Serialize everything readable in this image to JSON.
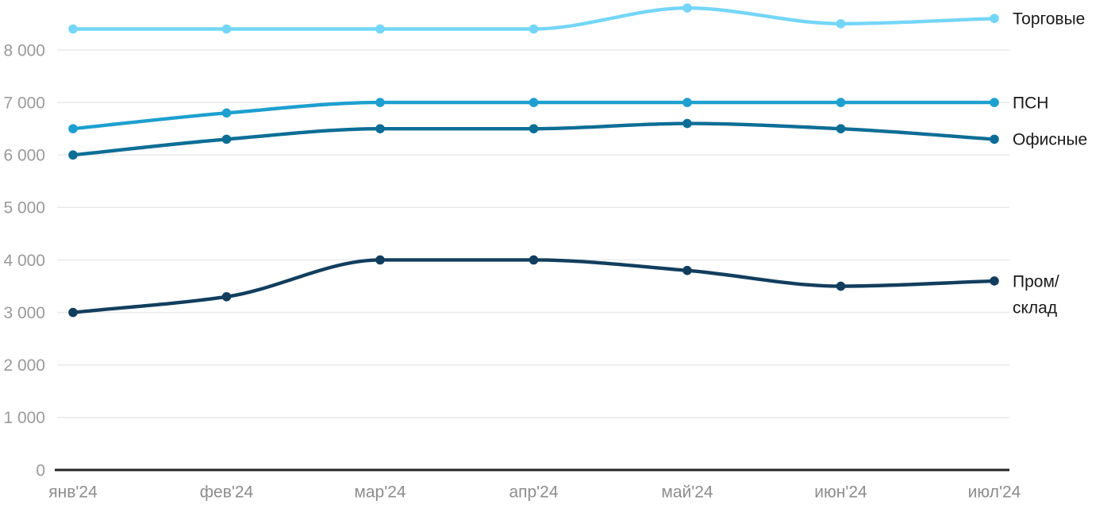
{
  "chart_data": {
    "type": "line",
    "title": "",
    "xlabel": "",
    "ylabel": "",
    "categories": [
      "янв'24",
      "фев'24",
      "мар'24",
      "апр'24",
      "май'24",
      "июн'24",
      "июл'24"
    ],
    "series": [
      {
        "name": "Торговые",
        "label_lines": [
          "Торговые"
        ],
        "color": "#74d6f7",
        "values": [
          8400,
          8400,
          8400,
          8400,
          8800,
          8500,
          8600
        ]
      },
      {
        "name": "ПСН",
        "label_lines": [
          "ПСН"
        ],
        "color": "#1da0cf",
        "values": [
          6500,
          6800,
          7000,
          7000,
          7000,
          7000,
          7000
        ]
      },
      {
        "name": "Офисные",
        "label_lines": [
          "Офисные"
        ],
        "color": "#0c6e96",
        "values": [
          6000,
          6300,
          6500,
          6500,
          6600,
          6500,
          6300
        ]
      },
      {
        "name": "Пром/склад",
        "label_lines": [
          "Пром/",
          "склад"
        ],
        "color": "#123e5e",
        "values": [
          3000,
          3300,
          4000,
          4000,
          3800,
          3500,
          3600
        ]
      }
    ],
    "y_axis": {
      "min": 0,
      "max": 9000,
      "tick_interval": 1000,
      "tick_labels": [
        "0",
        "1 000",
        "2 000",
        "3 000",
        "4 000",
        "5 000",
        "6 000",
        "7 000",
        "8 000"
      ]
    },
    "grid": "horizontal-only",
    "legend_position": "right-end-labels",
    "marker": "circle"
  },
  "colors": {
    "background": "#ffffff",
    "gridline": "#e8e8e8",
    "axis_line": "#262626",
    "y_tick_label": "#9a9a9a",
    "x_tick_label": "#8d8d8d",
    "series_label": "#1a1a1a"
  }
}
